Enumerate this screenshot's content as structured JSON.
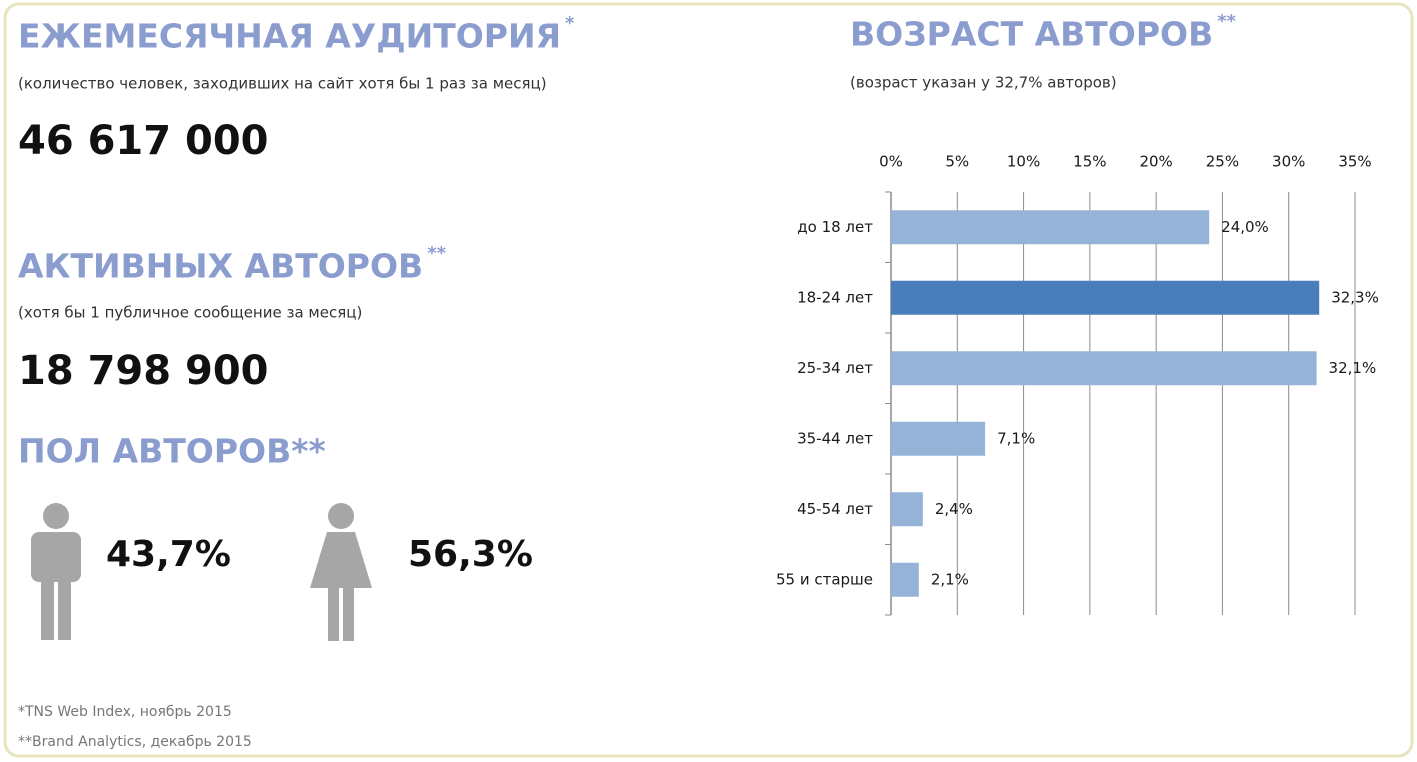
{
  "audience": {
    "title": "ЕЖЕМЕСЯЧНАЯ АУДИТОРИЯ",
    "note_mark": "*",
    "subtitle": "(количество человек, заходивших на сайт хотя бы 1 раз за месяц)",
    "value": "46 617 000"
  },
  "authors": {
    "title": "АКТИВНЫХ АВТОРОВ",
    "note_mark": "**",
    "subtitle": "(хотя бы 1 публичное сообщение за месяц)",
    "value": "18 798 900"
  },
  "gender": {
    "title": "ПОЛ АВТОРОВ**",
    "male": "43,7%",
    "female": "56,3%"
  },
  "footnotes": [
    "*TNS Web Index, ноябрь 2015",
    "**Brand Analytics, декабрь 2015"
  ],
  "chart_data": {
    "type": "bar",
    "orientation": "horizontal",
    "title": "ВОЗРАСТ АВТОРОВ",
    "title_mark": "**",
    "subtitle": "(возраст указан у 32,7% авторов)",
    "categories": [
      "до 18 лет",
      "18-24 лет",
      "25-34 лет",
      "35-44 лет",
      "45-54 лет",
      "55 и старше"
    ],
    "values": [
      24.0,
      32.3,
      32.1,
      7.1,
      2.4,
      2.1
    ],
    "value_labels": [
      "24,0%",
      "32,3%",
      "32,1%",
      "7,1%",
      "2,4%",
      "2,1%"
    ],
    "colors": [
      "#95b3d7",
      "#4a7ebb",
      "#95b3d7",
      "#95b3d7",
      "#95b3d7",
      "#95b3d7"
    ],
    "xlim": [
      0,
      35
    ],
    "xticks": [
      {
        "value": 0,
        "label": "0%"
      },
      {
        "value": 5,
        "label": "5%"
      },
      {
        "value": 10,
        "label": "10%"
      },
      {
        "value": 15,
        "label": "15%"
      },
      {
        "value": 20,
        "label": "20%"
      },
      {
        "value": 25,
        "label": "25%"
      },
      {
        "value": 30,
        "label": "30%"
      },
      {
        "value": 35,
        "label": "35%"
      }
    ],
    "grid": true
  }
}
